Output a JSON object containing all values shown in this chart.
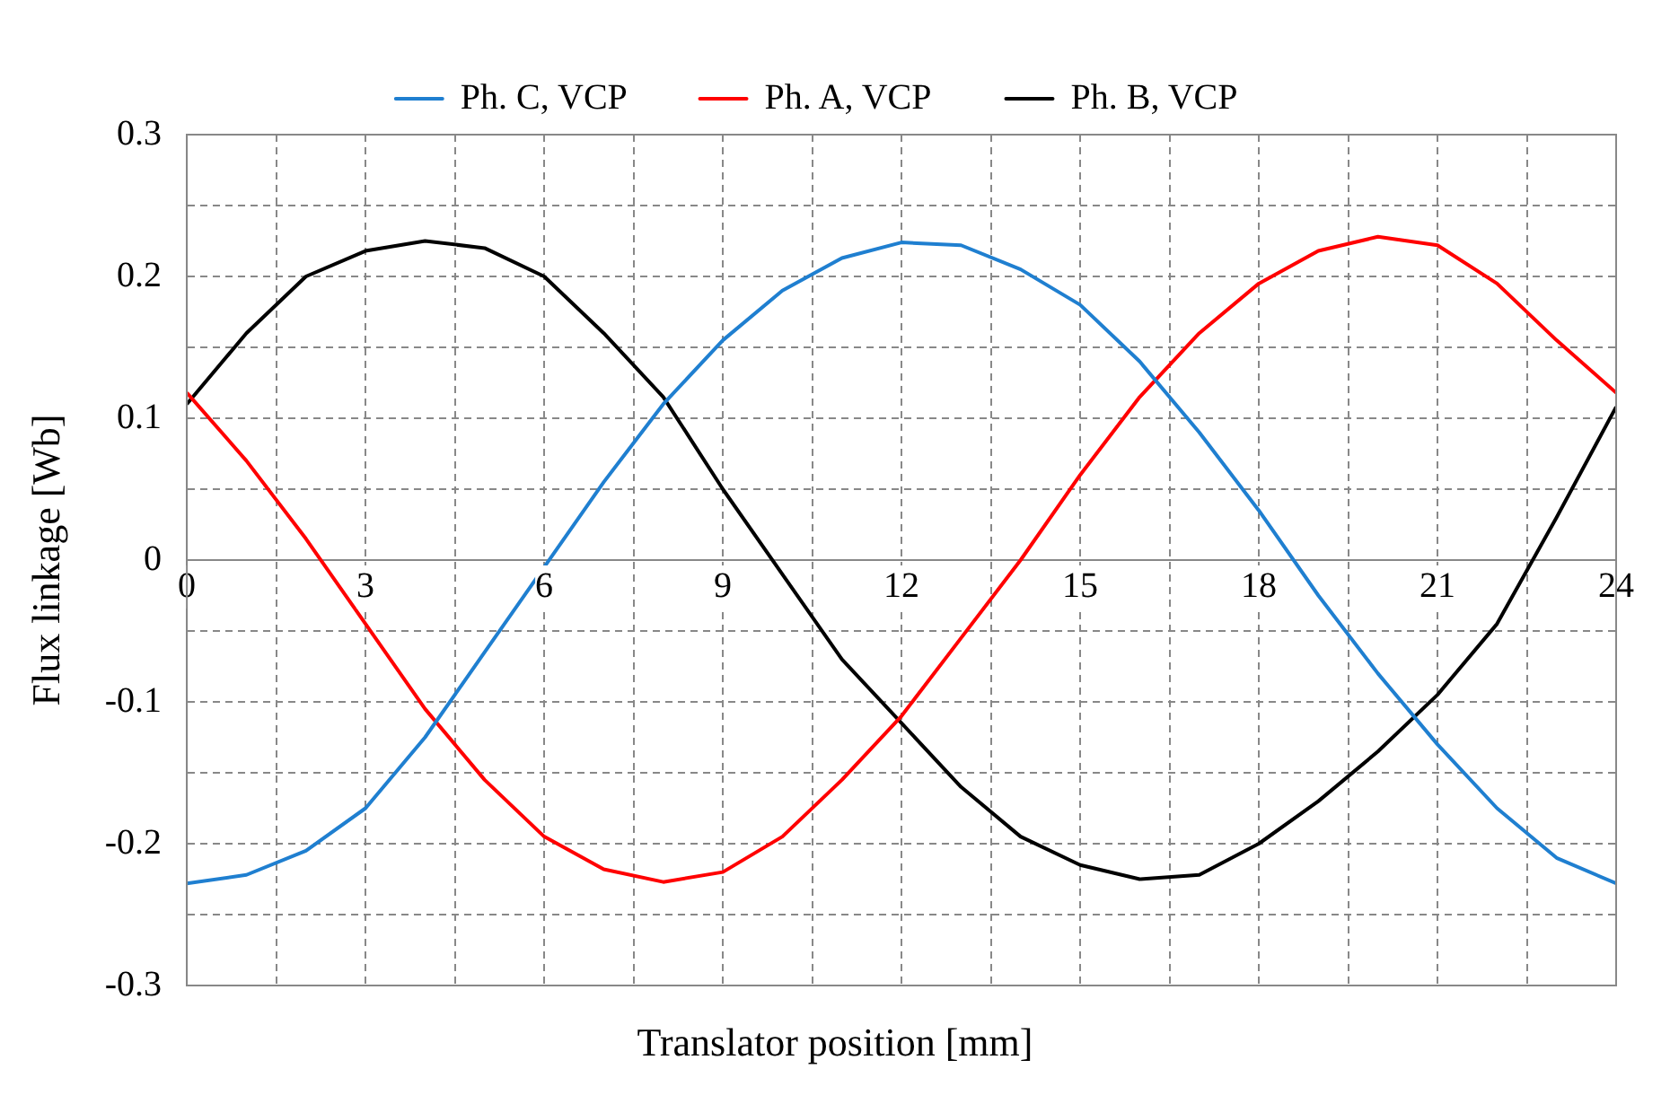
{
  "chart_data": {
    "type": "line",
    "xlabel": "Translator position [mm]",
    "ylabel": "Flux linkage [Wb]",
    "x": [
      0,
      1,
      2,
      3,
      4,
      5,
      6,
      7,
      8,
      9,
      10,
      11,
      12,
      13,
      14,
      15,
      16,
      17,
      18,
      19,
      20,
      21,
      22,
      23,
      24
    ],
    "series": [
      {
        "name": "Ph. C, VCP",
        "color": "#1f7fd0",
        "values": [
          -0.228,
          -0.222,
          -0.205,
          -0.175,
          -0.125,
          -0.065,
          -0.005,
          0.055,
          0.11,
          0.155,
          0.19,
          0.213,
          0.224,
          0.222,
          0.205,
          0.18,
          0.14,
          0.09,
          0.035,
          -0.025,
          -0.08,
          -0.13,
          -0.175,
          -0.21,
          -0.228
        ]
      },
      {
        "name": "Ph. A, VCP",
        "color": "#ff0000",
        "values": [
          0.118,
          0.07,
          0.015,
          -0.045,
          -0.105,
          -0.155,
          -0.195,
          -0.218,
          -0.227,
          -0.22,
          -0.195,
          -0.155,
          -0.11,
          -0.055,
          0.0,
          0.06,
          0.115,
          0.16,
          0.195,
          0.218,
          0.228,
          0.222,
          0.195,
          0.155,
          0.118
        ]
      },
      {
        "name": "Ph. B, VCP",
        "color": "#000000",
        "values": [
          0.11,
          0.16,
          0.2,
          0.218,
          0.225,
          0.22,
          0.2,
          0.16,
          0.115,
          0.05,
          -0.01,
          -0.07,
          -0.115,
          -0.16,
          -0.195,
          -0.215,
          -0.225,
          -0.222,
          -0.2,
          -0.17,
          -0.135,
          -0.095,
          -0.045,
          0.03,
          0.108
        ]
      }
    ],
    "xlim": [
      0,
      24
    ],
    "xticks": [
      0,
      {
        "value": 1.5,
        "label": null
      },
      3,
      {
        "value": 4.5,
        "label": null
      },
      6,
      {
        "value": 7.5,
        "label": null
      },
      9,
      {
        "value": 10.5,
        "label": null
      },
      12,
      {
        "value": 13.5,
        "label": null
      },
      15,
      {
        "value": 16.5,
        "label": null
      },
      18,
      {
        "value": 19.5,
        "label": null
      },
      21,
      {
        "value": 22.5,
        "label": null
      },
      24
    ],
    "ylim": [
      -0.3,
      0.3
    ],
    "yticks": [
      -0.3,
      {
        "value": -0.25,
        "label": null
      },
      -0.2,
      {
        "value": -0.15,
        "label": null
      },
      -0.1,
      {
        "value": -0.05,
        "label": null
      },
      0,
      {
        "value": 0.05,
        "label": null
      },
      0.1,
      {
        "value": 0.15,
        "label": null
      },
      0.2,
      {
        "value": 0.25,
        "label": null
      },
      0.3
    ],
    "grid": true,
    "legend": "top",
    "marker": "none",
    "line_style": "solid"
  }
}
